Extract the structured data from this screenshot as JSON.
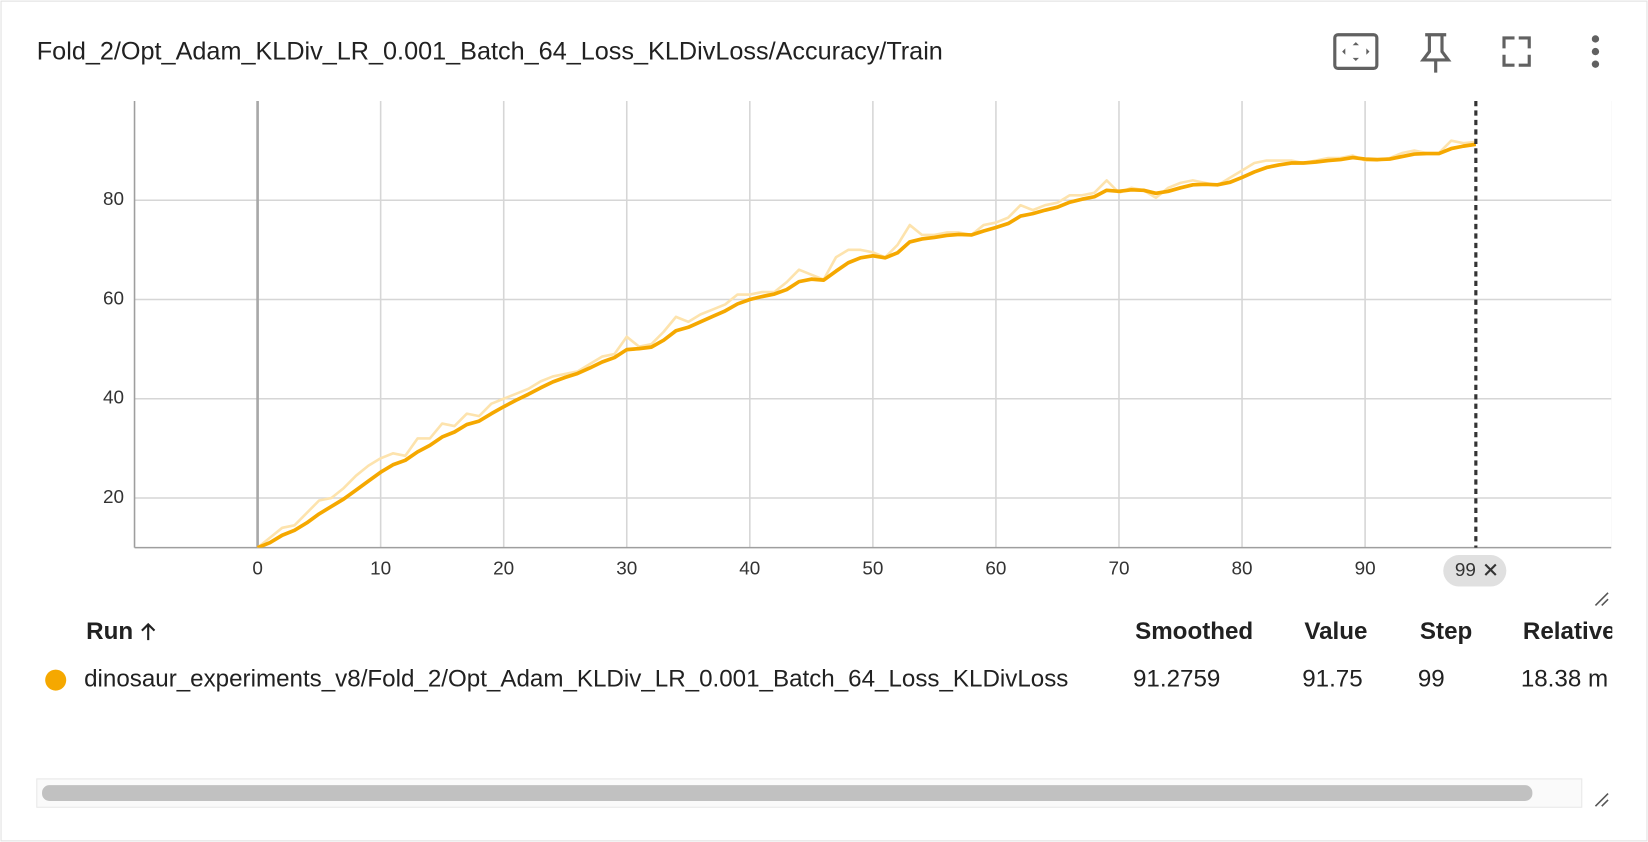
{
  "header": {
    "title": "Fold_2/Opt_Adam_KLDiv_LR_0.001_Batch_64_Loss_KLDivLoss/Accuracy/Train"
  },
  "chart_data": {
    "type": "line",
    "x": [
      0,
      1,
      2,
      3,
      4,
      5,
      6,
      7,
      8,
      9,
      10,
      11,
      12,
      13,
      14,
      15,
      16,
      17,
      18,
      19,
      20,
      21,
      22,
      23,
      24,
      25,
      26,
      27,
      28,
      29,
      30,
      31,
      32,
      33,
      34,
      35,
      36,
      37,
      38,
      39,
      40,
      41,
      42,
      43,
      44,
      45,
      46,
      47,
      48,
      49,
      50,
      51,
      52,
      53,
      54,
      55,
      56,
      57,
      58,
      59,
      60,
      61,
      62,
      63,
      64,
      65,
      66,
      67,
      68,
      69,
      70,
      71,
      72,
      73,
      74,
      75,
      76,
      77,
      78,
      79,
      80,
      81,
      82,
      83,
      84,
      85,
      86,
      87,
      88,
      89,
      90,
      91,
      92,
      93,
      94,
      95,
      96,
      97,
      98,
      99
    ],
    "series": [
      {
        "color": "#fde3ad",
        "values": [
          10,
          12,
          14,
          14.5,
          17,
          19.5,
          20,
          22,
          24.5,
          26.5,
          28,
          29,
          28.5,
          32,
          32,
          35,
          34.5,
          37,
          36.5,
          39,
          40,
          41,
          42,
          43.5,
          44.5,
          45,
          45.5,
          47,
          48.5,
          49,
          52.5,
          50.5,
          51,
          53.5,
          56.5,
          55.5,
          57,
          58,
          59,
          61,
          61,
          61.5,
          61.5,
          63.5,
          66,
          65,
          64,
          68.5,
          70,
          70,
          69.5,
          68.5,
          71,
          75,
          73,
          73,
          73.5,
          73.5,
          73,
          75,
          75.5,
          76.5,
          79,
          78,
          79,
          79.5,
          81,
          81,
          81.5,
          84,
          81.5,
          82.5,
          82,
          80.5,
          82.5,
          83.5,
          84,
          83.5,
          83,
          84.5,
          86,
          87.5,
          88,
          88,
          88,
          87.5,
          88,
          88.5,
          88.5,
          89,
          88,
          88,
          88.5,
          89.5,
          90,
          89.5,
          89.5,
          92,
          91.5,
          91.75
        ]
      },
      {
        "color": "#f5a800",
        "values": [
          10,
          11,
          12.5,
          13.5,
          15,
          16.8,
          18.3,
          19.8,
          21.6,
          23.4,
          25.2,
          26.7,
          27.6,
          29.3,
          30.6,
          32.3,
          33.3,
          34.8,
          35.5,
          37,
          38.4,
          39.7,
          40.9,
          42.2,
          43.4,
          44.3,
          45.1,
          46.2,
          47.4,
          48.3,
          49.9,
          50.1,
          50.4,
          51.8,
          53.7,
          54.4,
          55.5,
          56.6,
          57.7,
          59.1,
          60,
          60.6,
          61.1,
          62,
          63.6,
          64.1,
          63.9,
          65.7,
          67.4,
          68.4,
          68.8,
          68.4,
          69.4,
          71.6,
          72.2,
          72.5,
          72.9,
          73.1,
          73,
          73.8,
          74.5,
          75.3,
          76.8,
          77.3,
          78,
          78.6,
          79.6,
          80.2,
          80.7,
          82,
          81.8,
          82.1,
          82,
          81.4,
          81.8,
          82.5,
          83.1,
          83.2,
          83.1,
          83.6,
          84.6,
          85.7,
          86.6,
          87.1,
          87.5,
          87.5,
          87.7,
          88,
          88.2,
          88.6,
          88.3,
          88.2,
          88.3,
          88.8,
          89.3,
          89.4,
          89.4,
          90.4,
          90.9,
          91.2759
        ]
      }
    ],
    "xlim": [
      -10,
      110
    ],
    "xticks": [
      0,
      10,
      20,
      30,
      40,
      50,
      60,
      70,
      80,
      90
    ],
    "ylim": [
      10,
      100
    ],
    "yticks": [
      20,
      40,
      60,
      80
    ],
    "grid": true,
    "cursor_step": 99
  },
  "table": {
    "headers": [
      "Run",
      "Smoothed",
      "Value",
      "Step",
      "Relative"
    ],
    "rows": [
      [
        "dinosaur_experiments_v8/Fold_2/Opt_Adam_KLDiv_LR_0.001_Batch_64_Loss_KLDivLoss",
        91.2759,
        91.75,
        99,
        "18.38 m"
      ]
    ]
  }
}
